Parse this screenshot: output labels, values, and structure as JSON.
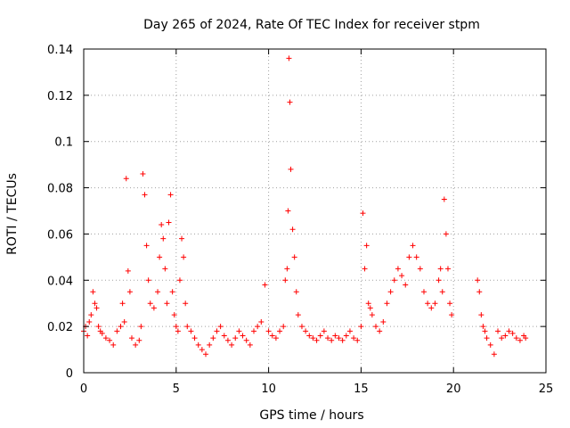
{
  "chart_data": {
    "type": "scatter",
    "title": "Day 265 of 2024, Rate Of TEC Index for receiver stpm",
    "xlabel": "GPS time / hours",
    "ylabel": "ROTI / TECUs",
    "xlim": [
      0,
      25
    ],
    "ylim": [
      0,
      0.14
    ],
    "xticks": [
      0,
      5,
      10,
      15,
      20,
      25
    ],
    "yticks": [
      0,
      0.02,
      0.04,
      0.06,
      0.08,
      0.1,
      0.12,
      0.14
    ],
    "grid": true,
    "marker": "+",
    "color": "#ff0000",
    "series": [
      {
        "name": "ROTI",
        "x": [
          0.0,
          0.1,
          0.2,
          0.3,
          0.4,
          0.5,
          0.6,
          0.7,
          0.8,
          0.9,
          1.0,
          1.2,
          1.4,
          1.6,
          1.8,
          2.0,
          2.1,
          2.2,
          2.3,
          2.4,
          2.5,
          2.6,
          2.8,
          3.0,
          3.1,
          3.2,
          3.3,
          3.4,
          3.5,
          3.6,
          3.8,
          4.0,
          4.1,
          4.2,
          4.3,
          4.4,
          4.5,
          4.6,
          4.7,
          4.8,
          4.9,
          5.0,
          5.1,
          5.2,
          5.3,
          5.4,
          5.5,
          5.6,
          5.8,
          6.0,
          6.2,
          6.4,
          6.6,
          6.8,
          7.0,
          7.2,
          7.4,
          7.6,
          7.8,
          8.0,
          8.2,
          8.4,
          8.6,
          8.8,
          9.0,
          9.2,
          9.4,
          9.6,
          9.8,
          10.0,
          10.2,
          10.4,
          10.6,
          10.8,
          10.9,
          11.0,
          11.05,
          11.1,
          11.15,
          11.2,
          11.3,
          11.4,
          11.5,
          11.6,
          11.8,
          12.0,
          12.2,
          12.4,
          12.6,
          12.8,
          13.0,
          13.2,
          13.4,
          13.6,
          13.8,
          14.0,
          14.2,
          14.4,
          14.6,
          14.8,
          15.0,
          15.1,
          15.2,
          15.3,
          15.4,
          15.5,
          15.6,
          15.8,
          16.0,
          16.2,
          16.4,
          16.6,
          16.8,
          17.0,
          17.2,
          17.4,
          17.6,
          17.8,
          18.0,
          18.2,
          18.4,
          18.6,
          18.8,
          19.0,
          19.2,
          19.3,
          19.4,
          19.5,
          19.6,
          19.7,
          19.8,
          19.9,
          21.3,
          21.4,
          21.5,
          21.6,
          21.7,
          21.8,
          22.0,
          22.2,
          22.4,
          22.6,
          22.8,
          23.0,
          23.2,
          23.4,
          23.6,
          23.8,
          23.9
        ],
        "y": [
          0.018,
          0.02,
          0.016,
          0.022,
          0.025,
          0.035,
          0.03,
          0.028,
          0.02,
          0.018,
          0.017,
          0.015,
          0.014,
          0.012,
          0.018,
          0.02,
          0.03,
          0.022,
          0.084,
          0.044,
          0.035,
          0.015,
          0.012,
          0.014,
          0.02,
          0.086,
          0.077,
          0.055,
          0.04,
          0.03,
          0.028,
          0.035,
          0.05,
          0.064,
          0.058,
          0.045,
          0.03,
          0.065,
          0.077,
          0.035,
          0.025,
          0.02,
          0.018,
          0.04,
          0.058,
          0.05,
          0.03,
          0.02,
          0.018,
          0.015,
          0.012,
          0.01,
          0.008,
          0.012,
          0.015,
          0.018,
          0.02,
          0.016,
          0.014,
          0.012,
          0.015,
          0.018,
          0.016,
          0.014,
          0.012,
          0.018,
          0.02,
          0.022,
          0.038,
          0.018,
          0.016,
          0.015,
          0.018,
          0.02,
          0.04,
          0.045,
          0.07,
          0.136,
          0.117,
          0.088,
          0.062,
          0.05,
          0.035,
          0.025,
          0.02,
          0.018,
          0.016,
          0.015,
          0.014,
          0.016,
          0.018,
          0.015,
          0.014,
          0.016,
          0.015,
          0.014,
          0.016,
          0.018,
          0.015,
          0.014,
          0.02,
          0.069,
          0.045,
          0.055,
          0.03,
          0.028,
          0.025,
          0.02,
          0.018,
          0.022,
          0.03,
          0.035,
          0.04,
          0.045,
          0.042,
          0.038,
          0.05,
          0.055,
          0.05,
          0.045,
          0.035,
          0.03,
          0.028,
          0.03,
          0.04,
          0.045,
          0.035,
          0.075,
          0.06,
          0.045,
          0.03,
          0.025,
          0.04,
          0.035,
          0.025,
          0.02,
          0.018,
          0.015,
          0.012,
          0.008,
          0.018,
          0.015,
          0.016,
          0.018,
          0.017,
          0.015,
          0.014,
          0.016,
          0.015
        ]
      }
    ]
  }
}
